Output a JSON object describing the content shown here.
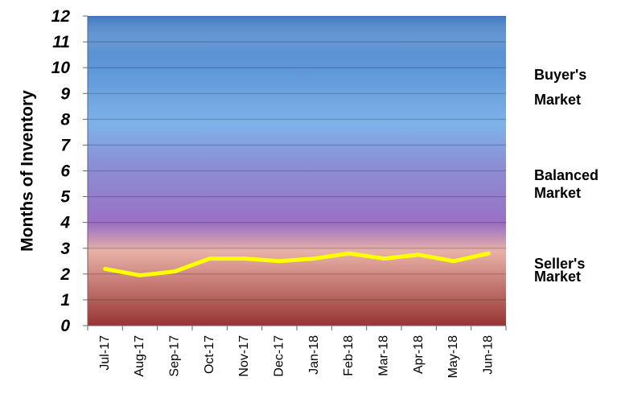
{
  "chart_data": {
    "type": "line",
    "title": "",
    "xlabel": "",
    "ylabel": "Months of Inventory",
    "ylim": [
      0,
      12
    ],
    "yticks": [
      0,
      1,
      2,
      3,
      4,
      5,
      6,
      7,
      8,
      9,
      10,
      11,
      12
    ],
    "categories": [
      "Jul-17",
      "Aug-17",
      "Sep-17",
      "Oct-17",
      "Nov-17",
      "Dec-17",
      "Jan-18",
      "Feb-18",
      "Mar-18",
      "Apr-18",
      "May-18",
      "Jun-18"
    ],
    "series": [
      {
        "values": [
          2.2,
          1.95,
          2.1,
          2.6,
          2.6,
          2.5,
          2.6,
          2.8,
          2.6,
          2.75,
          2.5,
          2.8
        ],
        "color": "#ffff00"
      }
    ],
    "grid": true,
    "zones": [
      {
        "label_line1": "Buyer's",
        "label_line2": "Market"
      },
      {
        "label_line1": "Balanced",
        "label_line2": "Market"
      },
      {
        "label_line1": "Seller's",
        "label_line2": "Market"
      }
    ],
    "background_colors": {
      "top": "#4f86c9",
      "upper": "#7fb2ea",
      "middle": "#9a6fc5",
      "lower": "#e8b1a7",
      "bottom": "#973433"
    }
  }
}
